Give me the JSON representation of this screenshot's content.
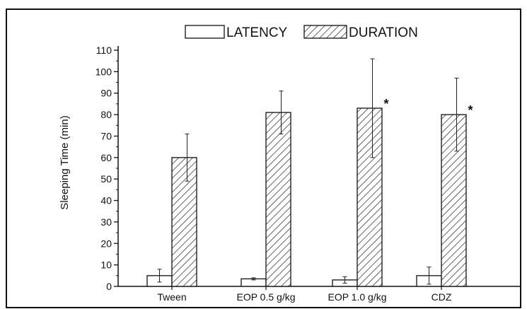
{
  "chart_data": {
    "type": "bar",
    "title": "",
    "xlabel": "",
    "ylabel": "Sleeping Time (min)",
    "ylim": [
      0,
      110
    ],
    "yticks": [
      0,
      10,
      20,
      30,
      40,
      50,
      60,
      70,
      80,
      90,
      100,
      110
    ],
    "categories": [
      "Tween",
      "EOP 0.5 g/kg",
      "EOP 1.0 g/kg",
      "CDZ"
    ],
    "legend_position": "top",
    "series": [
      {
        "name": "LATENCY",
        "pattern": "open",
        "values": [
          5,
          3.5,
          3,
          5
        ],
        "errors": [
          3,
          0.5,
          1.5,
          4
        ],
        "significance": [
          "",
          "",
          "",
          ""
        ]
      },
      {
        "name": "DURATION",
        "pattern": "hatched",
        "values": [
          60,
          81,
          83,
          80
        ],
        "errors": [
          11,
          10,
          23,
          17
        ],
        "significance": [
          "",
          "",
          "*",
          "*"
        ]
      }
    ],
    "colors": {
      "frame": "#111111",
      "bar_fill": "#ffffff",
      "hatch": "#222222"
    }
  }
}
